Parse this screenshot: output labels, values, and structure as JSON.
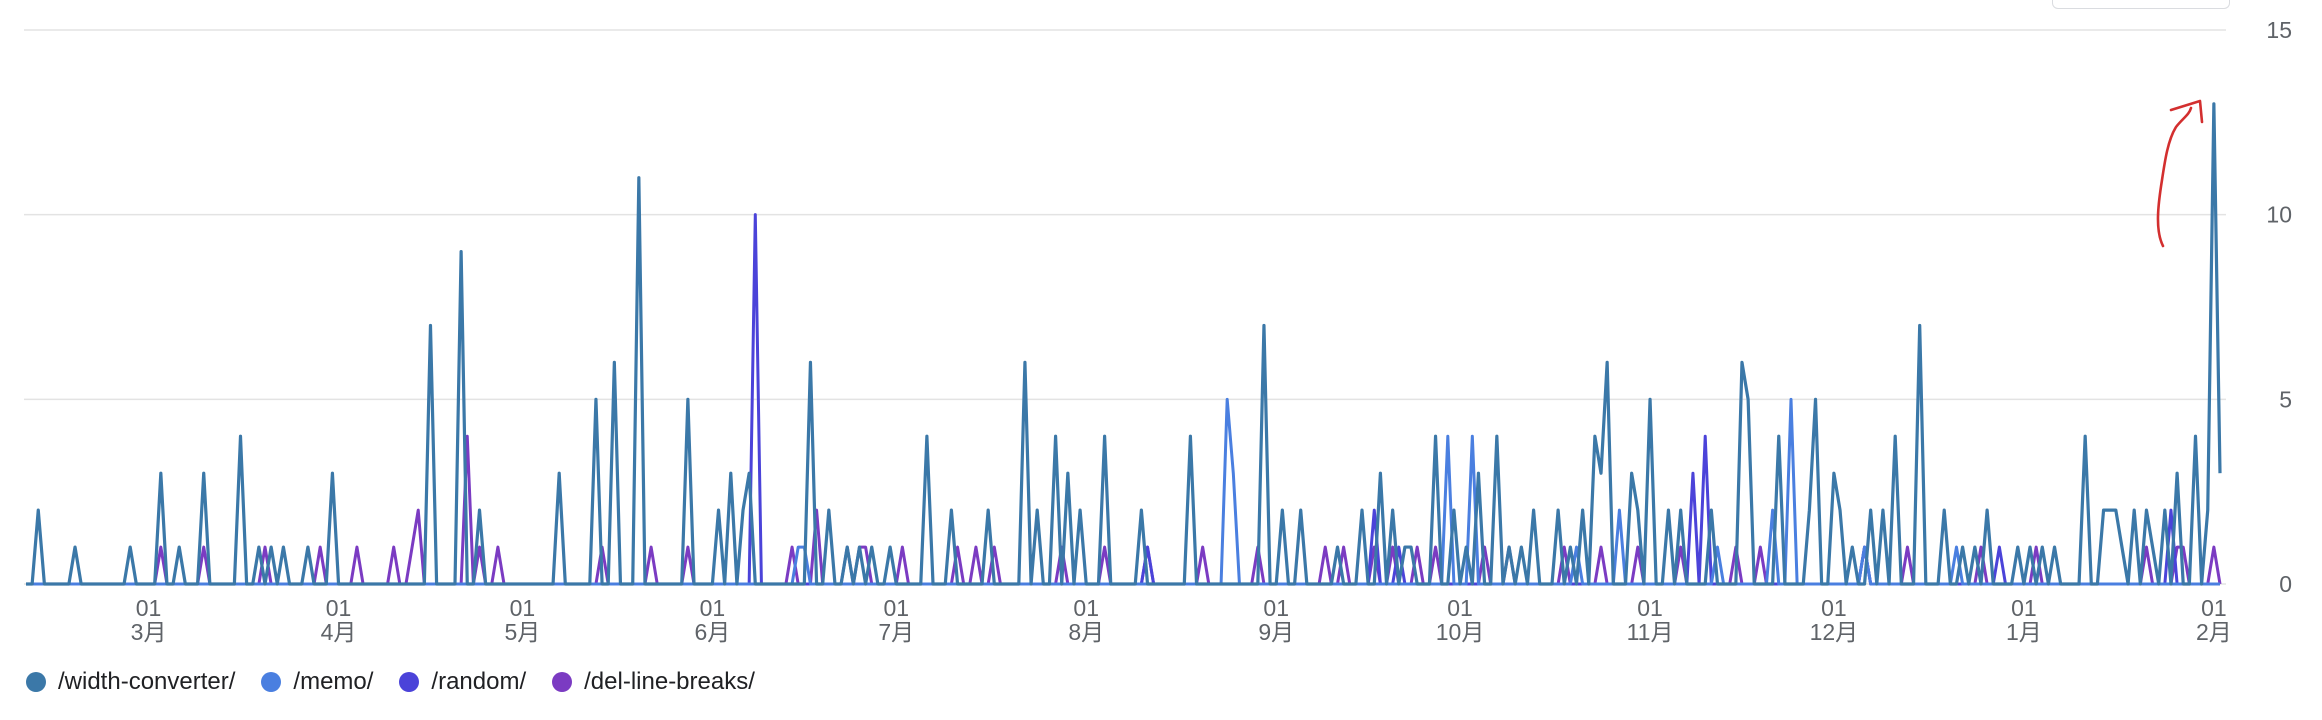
{
  "chart_data": {
    "type": "line",
    "title": "",
    "xlabel": "",
    "ylabel": "",
    "ylim": [
      0,
      15
    ],
    "y_ticks": [
      0,
      5,
      10,
      15
    ],
    "y_axis_side": "right",
    "grid": true,
    "legend_position": "bottom-left",
    "x_range_days": [
      0,
      358
    ],
    "x_tick_labels": [
      {
        "day": 20,
        "top": "01",
        "bottom": "3月"
      },
      {
        "day": 51,
        "top": "01",
        "bottom": "4月"
      },
      {
        "day": 81,
        "top": "01",
        "bottom": "5月"
      },
      {
        "day": 112,
        "top": "01",
        "bottom": "6月"
      },
      {
        "day": 142,
        "top": "01",
        "bottom": "7月"
      },
      {
        "day": 173,
        "top": "01",
        "bottom": "8月"
      },
      {
        "day": 204,
        "top": "01",
        "bottom": "9月"
      },
      {
        "day": 234,
        "top": "01",
        "bottom": "10月"
      },
      {
        "day": 265,
        "top": "01",
        "bottom": "11月"
      },
      {
        "day": 295,
        "top": "01",
        "bottom": "12月"
      },
      {
        "day": 326,
        "top": "01",
        "bottom": "1月"
      },
      {
        "day": 357,
        "top": "01",
        "bottom": "2月"
      }
    ],
    "series": [
      {
        "name": "/width-converter/",
        "color": "#3b78a8",
        "points": [
          [
            2,
            2
          ],
          [
            8,
            1
          ],
          [
            17,
            1
          ],
          [
            22,
            3
          ],
          [
            25,
            1
          ],
          [
            29,
            3
          ],
          [
            35,
            4
          ],
          [
            38,
            1
          ],
          [
            40,
            1
          ],
          [
            42,
            1
          ],
          [
            46,
            1
          ],
          [
            50,
            3
          ],
          [
            66,
            7
          ],
          [
            71,
            9
          ],
          [
            74,
            2
          ],
          [
            87,
            3
          ],
          [
            93,
            5
          ],
          [
            96,
            6
          ],
          [
            100,
            11
          ],
          [
            108,
            5
          ],
          [
            113,
            2
          ],
          [
            115,
            3
          ],
          [
            117,
            2
          ],
          [
            118,
            3
          ],
          [
            128,
            6
          ],
          [
            131,
            2
          ],
          [
            134,
            1
          ],
          [
            136,
            1
          ],
          [
            138,
            1
          ],
          [
            141,
            1
          ],
          [
            147,
            4
          ],
          [
            151,
            2
          ],
          [
            157,
            2
          ],
          [
            163,
            6
          ],
          [
            165,
            2
          ],
          [
            168,
            4
          ],
          [
            170,
            3
          ],
          [
            172,
            2
          ],
          [
            176,
            4
          ],
          [
            182,
            2
          ],
          [
            190,
            4
          ],
          [
            202,
            7
          ],
          [
            205,
            2
          ],
          [
            208,
            2
          ],
          [
            214,
            1
          ],
          [
            218,
            2
          ],
          [
            221,
            3
          ],
          [
            223,
            2
          ],
          [
            225,
            1
          ],
          [
            226,
            1
          ],
          [
            230,
            4
          ],
          [
            233,
            2
          ],
          [
            235,
            1
          ],
          [
            237,
            3
          ],
          [
            240,
            4
          ],
          [
            242,
            1
          ],
          [
            244,
            1
          ],
          [
            246,
            2
          ],
          [
            250,
            2
          ],
          [
            252,
            1
          ],
          [
            254,
            2
          ],
          [
            256,
            4
          ],
          [
            257,
            3
          ],
          [
            258,
            6
          ],
          [
            262,
            3
          ],
          [
            263,
            2
          ],
          [
            265,
            5
          ],
          [
            268,
            2
          ],
          [
            270,
            2
          ],
          [
            275,
            2
          ],
          [
            280,
            6
          ],
          [
            281,
            5
          ],
          [
            286,
            4
          ],
          [
            291,
            2
          ],
          [
            292,
            5
          ],
          [
            295,
            3
          ],
          [
            296,
            2
          ],
          [
            298,
            1
          ],
          [
            301,
            2
          ],
          [
            303,
            2
          ],
          [
            305,
            4
          ],
          [
            309,
            7
          ],
          [
            313,
            2
          ],
          [
            316,
            1
          ],
          [
            318,
            1
          ],
          [
            320,
            2
          ],
          [
            325,
            1
          ],
          [
            327,
            1
          ],
          [
            329,
            1
          ],
          [
            331,
            1
          ],
          [
            336,
            4
          ],
          [
            339,
            2
          ],
          [
            340,
            2
          ],
          [
            341,
            2
          ],
          [
            342,
            1
          ],
          [
            344,
            2
          ],
          [
            346,
            2
          ],
          [
            347,
            1
          ],
          [
            349,
            2
          ],
          [
            351,
            3
          ],
          [
            354,
            4
          ],
          [
            356,
            2
          ],
          [
            357,
            13
          ],
          [
            358,
            3
          ]
        ]
      },
      {
        "name": "/memo/",
        "color": "#4a7fe0",
        "points": [
          [
            126,
            1
          ],
          [
            127,
            1
          ],
          [
            196,
            5
          ],
          [
            197,
            3
          ],
          [
            232,
            4
          ],
          [
            236,
            4
          ],
          [
            253,
            1
          ],
          [
            260,
            2
          ],
          [
            276,
            1
          ],
          [
            285,
            2
          ],
          [
            288,
            5
          ],
          [
            300,
            1
          ],
          [
            315,
            1
          ]
        ]
      },
      {
        "name": "/random/",
        "color": "#4b43d9",
        "points": [
          [
            119,
            10
          ],
          [
            183,
            1
          ],
          [
            220,
            2
          ],
          [
            224,
            1
          ],
          [
            272,
            3
          ],
          [
            274,
            4
          ],
          [
            300,
            1
          ],
          [
            322,
            1
          ],
          [
            350,
            2
          ]
        ]
      },
      {
        "name": "/del-line-breaks/",
        "color": "#7b3bc2",
        "points": [
          [
            22,
            1
          ],
          [
            29,
            1
          ],
          [
            39,
            1
          ],
          [
            48,
            1
          ],
          [
            54,
            1
          ],
          [
            60,
            1
          ],
          [
            63,
            1
          ],
          [
            64,
            2
          ],
          [
            72,
            4
          ],
          [
            74,
            1
          ],
          [
            77,
            1
          ],
          [
            94,
            1
          ],
          [
            102,
            1
          ],
          [
            108,
            1
          ],
          [
            125,
            1
          ],
          [
            129,
            2
          ],
          [
            134,
            1
          ],
          [
            136,
            1
          ],
          [
            137,
            1
          ],
          [
            143,
            1
          ],
          [
            152,
            1
          ],
          [
            155,
            1
          ],
          [
            158,
            1
          ],
          [
            169,
            1
          ],
          [
            176,
            1
          ],
          [
            183,
            1
          ],
          [
            192,
            1
          ],
          [
            201,
            1
          ],
          [
            212,
            1
          ],
          [
            215,
            1
          ],
          [
            220,
            1
          ],
          [
            223,
            1
          ],
          [
            227,
            1
          ],
          [
            230,
            1
          ],
          [
            238,
            1
          ],
          [
            242,
            1
          ],
          [
            251,
            1
          ],
          [
            257,
            1
          ],
          [
            263,
            1
          ],
          [
            270,
            1
          ],
          [
            279,
            1
          ],
          [
            283,
            1
          ],
          [
            300,
            1
          ],
          [
            307,
            1
          ],
          [
            319,
            1
          ],
          [
            328,
            1
          ],
          [
            346,
            1
          ],
          [
            351,
            1
          ],
          [
            352,
            1
          ],
          [
            357,
            1
          ]
        ]
      }
    ]
  },
  "annotation": {
    "color": "#d32f2f",
    "shape": "hand-drawn-arrow-up"
  }
}
